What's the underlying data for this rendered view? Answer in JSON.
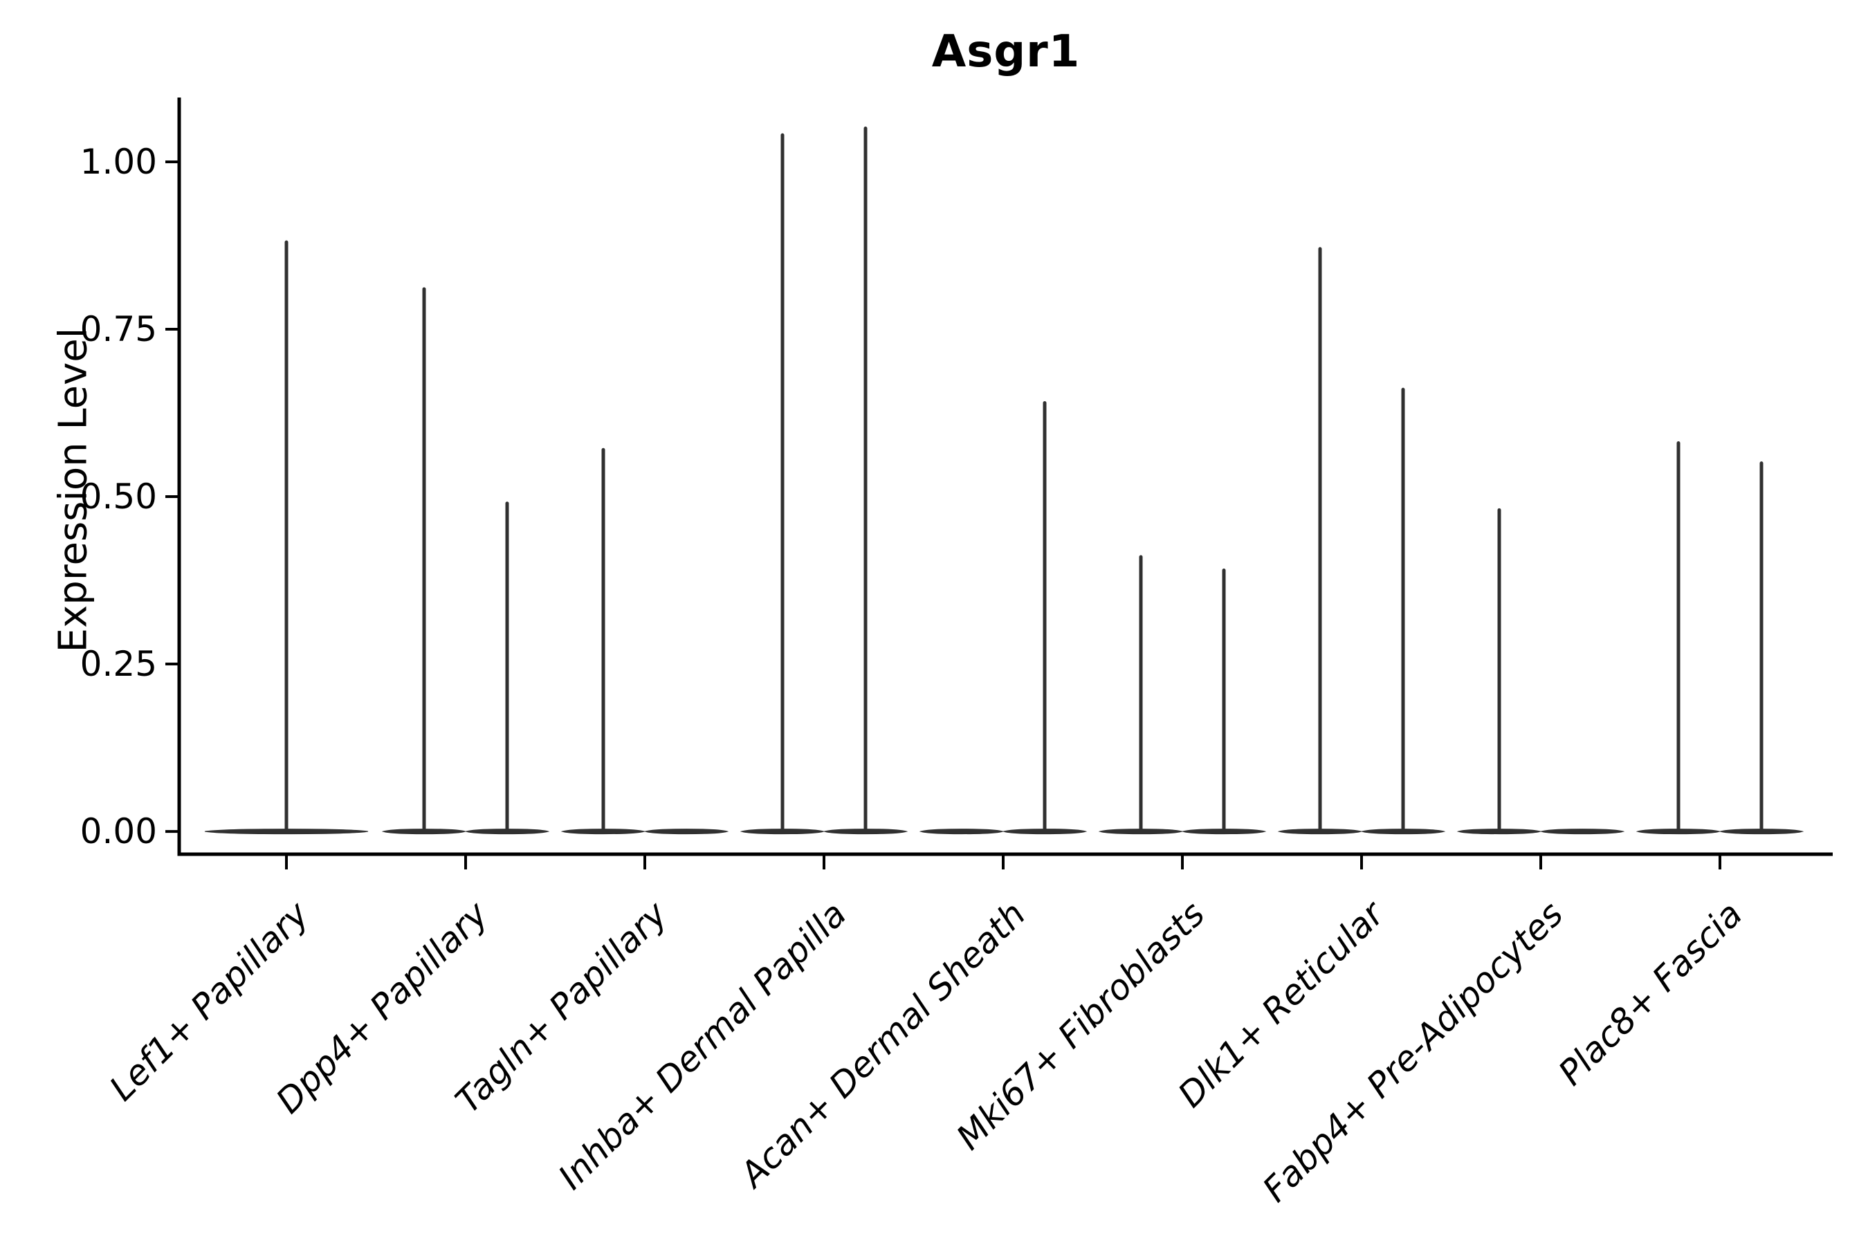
{
  "title": "Asgr1",
  "y_axis": {
    "label": "Expression Level",
    "tick_labels": [
      "0.00",
      "0.25",
      "0.50",
      "0.75",
      "1.00"
    ],
    "tick_values": [
      0.0,
      0.25,
      0.5,
      0.75,
      1.0
    ]
  },
  "style": {
    "background": "#ffffff",
    "axis_color": "#000000",
    "violin_color": "#303030",
    "text_color": "#000000"
  },
  "chart_data": {
    "type": "violin",
    "title": "Asgr1",
    "xlabel": "",
    "ylabel": "Expression Level",
    "ylim": [
      -0.034,
      1.096
    ],
    "grid": false,
    "legend": "none",
    "note": "Expression of Asgr1 per fibroblast cluster; violins are near-zero-width (most cells zero) with thin spikes up to the max expressing cell. Categories with two sub-violins are dodged side by side; sub-violins with max 0 are flat lines at y=0.",
    "categories": [
      "Lef1+ Papillary",
      "Dpp4+ Papillary",
      "Tagln+ Papillary",
      "Inhba+ Dermal Papilla",
      "Acan+ Dermal Sheath",
      "Mki67+ Fibroblasts",
      "Dlk1+ Reticular",
      "Fabp4+ Pre-Adipocytes",
      "Plac8+ Fascia"
    ],
    "series": [
      {
        "category": "Lef1+ Papillary",
        "violins": [
          {
            "position": "center",
            "max_expression": 0.88
          }
        ]
      },
      {
        "category": "Dpp4+ Papillary",
        "violins": [
          {
            "position": "left",
            "max_expression": 0.81
          },
          {
            "position": "right",
            "max_expression": 0.49
          }
        ]
      },
      {
        "category": "Tagln+ Papillary",
        "violins": [
          {
            "position": "left",
            "max_expression": 0.57
          },
          {
            "position": "right",
            "max_expression": 0.0
          }
        ]
      },
      {
        "category": "Inhba+ Dermal Papilla",
        "violins": [
          {
            "position": "left",
            "max_expression": 1.04
          },
          {
            "position": "right",
            "max_expression": 1.05
          }
        ]
      },
      {
        "category": "Acan+ Dermal Sheath",
        "violins": [
          {
            "position": "left",
            "max_expression": 0.0
          },
          {
            "position": "right",
            "max_expression": 0.64
          }
        ]
      },
      {
        "category": "Mki67+ Fibroblasts",
        "violins": [
          {
            "position": "left",
            "max_expression": 0.41
          },
          {
            "position": "right",
            "max_expression": 0.39
          }
        ]
      },
      {
        "category": "Dlk1+ Reticular",
        "violins": [
          {
            "position": "left",
            "max_expression": 0.87
          },
          {
            "position": "right",
            "max_expression": 0.66
          }
        ]
      },
      {
        "category": "Fabp4+ Pre-Adipocytes",
        "violins": [
          {
            "position": "left",
            "max_expression": 0.48
          },
          {
            "position": "right",
            "max_expression": 0.0
          }
        ]
      },
      {
        "category": "Plac8+ Fascia",
        "violins": [
          {
            "position": "left",
            "max_expression": 0.58
          },
          {
            "position": "right",
            "max_expression": 0.55
          }
        ]
      }
    ]
  }
}
